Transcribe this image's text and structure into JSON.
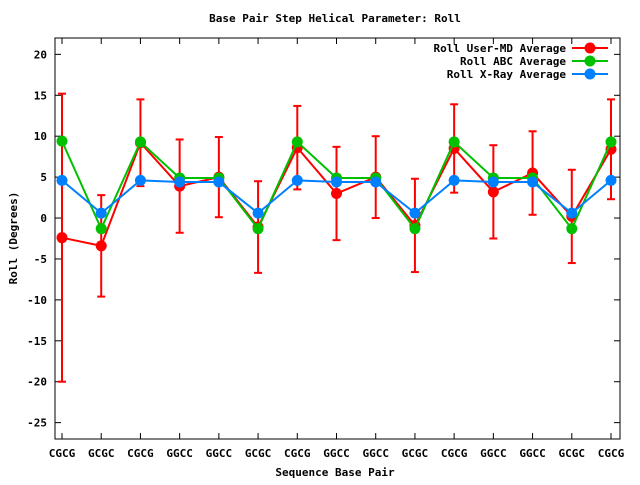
{
  "chart_data": {
    "type": "line",
    "title": "Base Pair Step Helical Parameter: Roll",
    "xlabel": "Sequence Base Pair",
    "ylabel": "Roll (Degrees)",
    "categories": [
      "CGCG",
      "GCGC",
      "CGCG",
      "GGCC",
      "GGCC",
      "GCGC",
      "CGCG",
      "GGCC",
      "GGCC",
      "GCGC",
      "CGCG",
      "GGCC",
      "GGCC",
      "GCGC",
      "CGCG"
    ],
    "ylim": [
      -27,
      22
    ],
    "yticks": [
      20,
      15,
      10,
      5,
      0,
      -5,
      -10,
      -15,
      -20,
      -25
    ],
    "legend_position": "top-right",
    "grid": false,
    "series": [
      {
        "name": "Roll User-MD Average",
        "color": "#ff0000",
        "values": [
          -2.4,
          -3.4,
          9.2,
          3.9,
          5.0,
          -1.1,
          8.6,
          3.0,
          5.0,
          -0.9,
          8.5,
          3.2,
          5.5,
          0.2,
          8.4
        ],
        "error": [
          17.6,
          6.2,
          5.3,
          5.7,
          4.9,
          5.6,
          5.1,
          5.7,
          5.0,
          5.7,
          5.4,
          5.7,
          5.1,
          5.7,
          6.1
        ]
      },
      {
        "name": "Roll ABC Average",
        "color": "#00c000",
        "values": [
          9.4,
          -1.3,
          9.3,
          4.9,
          4.9,
          -1.3,
          9.3,
          4.9,
          4.9,
          -1.3,
          9.3,
          4.9,
          4.9,
          -1.3,
          9.3
        ]
      },
      {
        "name": "Roll X-Ray Average",
        "color": "#0080ff",
        "values": [
          4.6,
          0.6,
          4.6,
          4.4,
          4.4,
          0.6,
          4.6,
          4.4,
          4.4,
          0.6,
          4.6,
          4.4,
          4.4,
          0.6,
          4.6
        ]
      }
    ]
  }
}
